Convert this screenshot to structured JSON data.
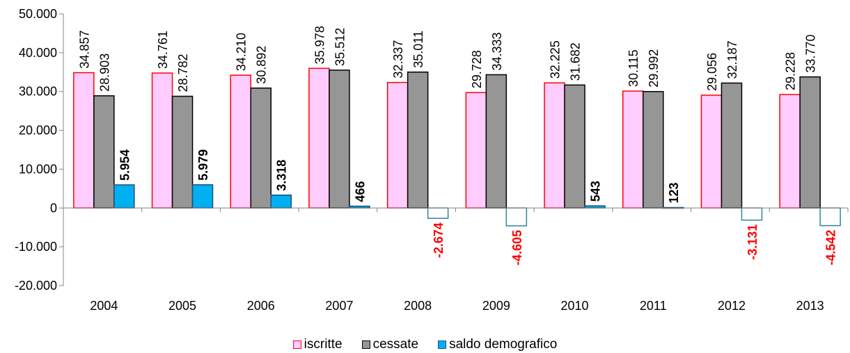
{
  "chart_data": {
    "type": "bar",
    "categories": [
      "2004",
      "2005",
      "2006",
      "2007",
      "2008",
      "2009",
      "2010",
      "2011",
      "2012",
      "2013"
    ],
    "series": [
      {
        "name": "iscritte",
        "values": [
          34857,
          34761,
          34210,
          35978,
          32337,
          29728,
          32225,
          30115,
          29056,
          29228
        ],
        "labels": [
          "34.857",
          "34.761",
          "34.210",
          "35.978",
          "32.337",
          "29.728",
          "32.225",
          "30.115",
          "29.056",
          "29.228"
        ],
        "fill": "#FFCCFF",
        "stroke": "#FF0000"
      },
      {
        "name": "cessate",
        "values": [
          28903,
          28782,
          30892,
          35512,
          35011,
          34333,
          31682,
          29992,
          32187,
          33770
        ],
        "labels": [
          "28.903",
          "28.782",
          "30.892",
          "35.512",
          "35.011",
          "34.333",
          "31.682",
          "29.992",
          "32.187",
          "33.770"
        ],
        "fill": "#969696",
        "stroke": "#000000"
      },
      {
        "name": "saldo demografico",
        "values": [
          5954,
          5979,
          3318,
          466,
          -2674,
          -4605,
          543,
          123,
          -3131,
          -4542
        ],
        "labels": [
          "5.954",
          "5.979",
          "3.318",
          "466",
          "-2.674",
          "-4.605",
          "543",
          "123",
          "-3.131",
          "-4.542"
        ],
        "fill": "#00B0F0",
        "stroke": "#1F4E79",
        "negative_fill": "#FFFFFF",
        "negative_stroke": "#31859C",
        "label_color_positive": "#000000",
        "label_color_negative": "#FF0000"
      }
    ],
    "ylim": [
      -20000,
      50000
    ],
    "yticks": [
      -20000,
      -10000,
      0,
      10000,
      20000,
      30000,
      40000,
      50000
    ],
    "ytick_labels": [
      "-20.000",
      "-10.000",
      "0",
      "10.000",
      "20.000",
      "30.000",
      "40.000",
      "50.000"
    ],
    "legend_position": "bottom",
    "grid": false,
    "title": "",
    "xlabel": "",
    "ylabel": ""
  },
  "legend": {
    "iscritte": "iscritte",
    "cessate": "cessate",
    "saldo": "saldo demografico"
  }
}
